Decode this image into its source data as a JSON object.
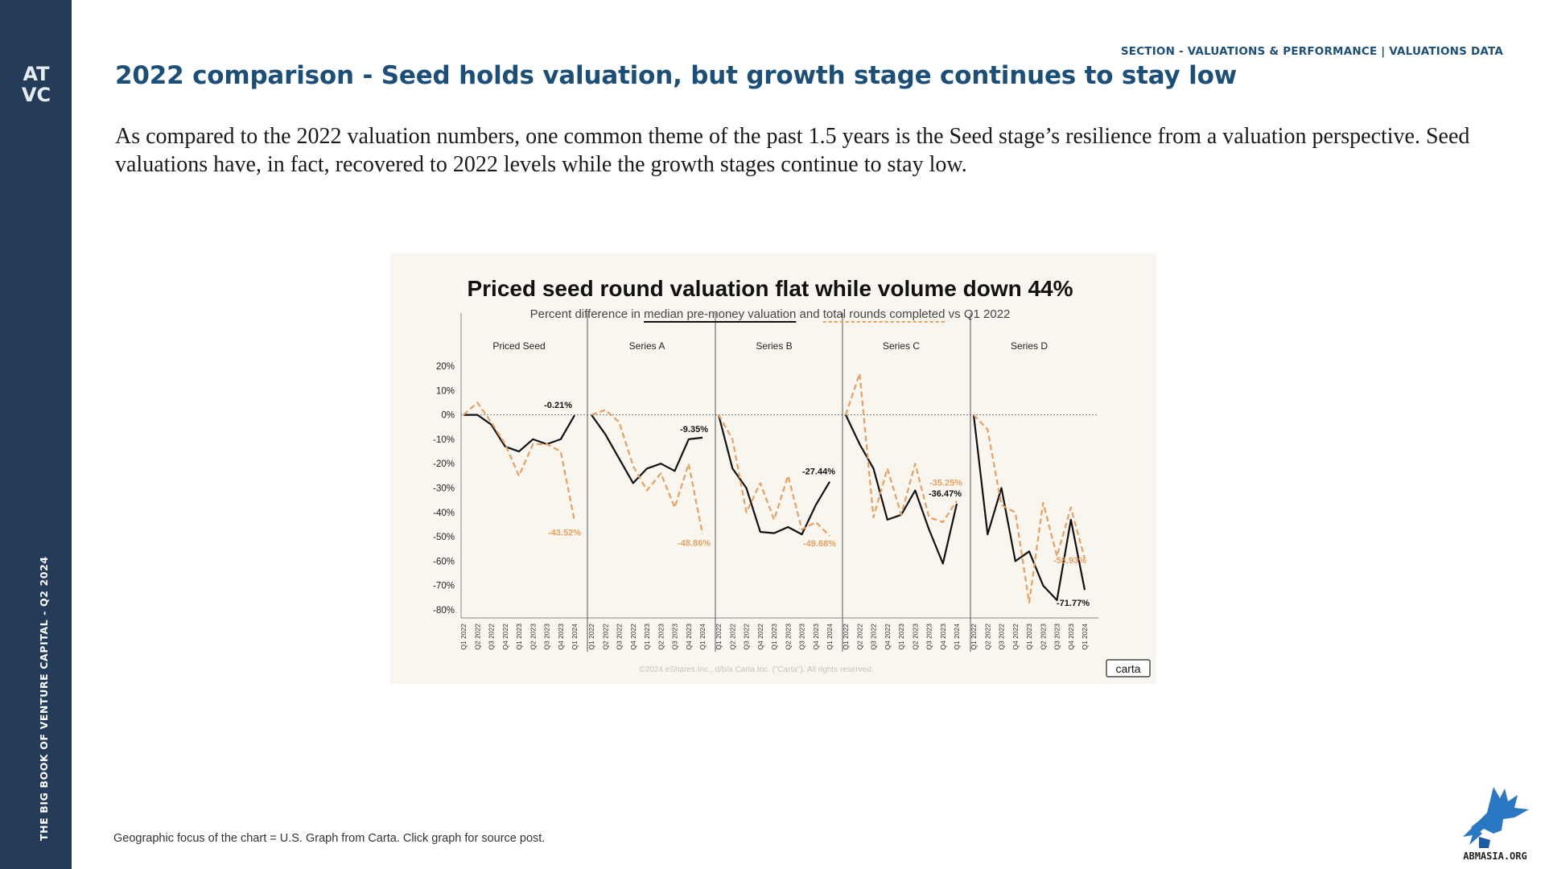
{
  "sidebar": {
    "logo_text": "ATVC",
    "vertical_text": "THE BIG BOOK OF VENTURE CAPITAL - Q2 2024"
  },
  "header": {
    "section_label": "SECTION - VALUATIONS & PERFORMANCE | VALUATIONS DATA",
    "title": "2022 comparison - Seed holds valuation, but growth stage continues to stay low"
  },
  "body_text": "As compared to the 2022 valuation numbers, one common theme of the past 1.5 years is the Seed stage’s resilience from a valuation perspective. Seed valuations have, in fact, recovered to 2022 levels while the growth stages continue to stay low.",
  "footnote": "Geographic focus of the chart = U.S. Graph from Carta. Click graph for source post.",
  "corner_logo_text": "ABMASIA.ORG",
  "colors": {
    "sidebar": "#243c5a",
    "heading": "#1b4f7a",
    "valuation_line": "#111111",
    "rounds_line": "#e8a060",
    "chart_bg": "#f9f6ef"
  },
  "chart_data": {
    "type": "line",
    "title": "Priced seed round valuation flat while volume down 44%",
    "subtitle_parts": [
      "Percent difference in ",
      "median pre-money valuation",
      " and ",
      "total rounds completed",
      " vs Q1 2022"
    ],
    "ylim": [
      -80,
      20
    ],
    "y_ticks": [
      20,
      10,
      0,
      -10,
      -20,
      -30,
      -40,
      -50,
      -60,
      -70,
      -80
    ],
    "y_tick_labels": [
      "20%",
      "10%",
      "0%",
      "-10%",
      "-20%",
      "-30%",
      "-40%",
      "-50%",
      "-60%",
      "-70%",
      "-80%"
    ],
    "x_tick_labels": [
      "Q1 2022",
      "Q2 2022",
      "Q3 2022",
      "Q4 2022",
      "Q1 2023",
      "Q2 2023",
      "Q3 2023",
      "Q4 2023",
      "Q1 2024"
    ],
    "series": [
      {
        "name": "median pre-money valuation",
        "style": "solid",
        "color": "#111111",
        "panels": {
          "Priced Seed": [
            0,
            0,
            -4,
            -13,
            -15,
            -10,
            -12,
            -10,
            -0.21
          ],
          "Series A": [
            0,
            -8,
            -18,
            -28,
            -22,
            -20,
            -23,
            -10,
            -9.35
          ],
          "Series B": [
            0,
            -22,
            -30,
            -48,
            -48.5,
            -46,
            -49,
            -37,
            -27.44
          ],
          "Series C": [
            0,
            -12,
            -22,
            -43,
            -41,
            -31,
            -47,
            -61,
            -36.47
          ],
          "Series D": [
            0,
            -49,
            -30,
            -60,
            -56,
            -70,
            -76,
            -43,
            -71.77
          ]
        }
      },
      {
        "name": "total rounds completed",
        "style": "dashed",
        "color": "#e8a060",
        "panels": {
          "Priced Seed": [
            0,
            5,
            -3,
            -12,
            -25,
            -12,
            -12,
            -15,
            -43.52
          ],
          "Series A": [
            0,
            2,
            -3,
            -21,
            -31,
            -24,
            -38,
            -20,
            -48.86
          ],
          "Series B": [
            0,
            -10,
            -40,
            -28,
            -43,
            -25,
            -47,
            -44,
            -49.68
          ],
          "Series C": [
            0,
            17,
            -42,
            -22,
            -41,
            -20,
            -42,
            -44,
            -35.25
          ],
          "Series D": [
            0,
            -6,
            -37,
            -40,
            -77,
            -36,
            -58,
            -38,
            -58.93
          ]
        }
      }
    ],
    "panel_titles": [
      "Priced Seed",
      "Series A",
      "Series B",
      "Series C",
      "Series D"
    ],
    "end_labels": {
      "valuation": [
        "-0.21%",
        "-9.35%",
        "-27.44%",
        "-36.47%",
        "-71.77%"
      ],
      "rounds": [
        "-43.52%",
        "-48.86%",
        "-49.68%",
        "-35.25%",
        "-58.93%"
      ]
    },
    "copyright": "©2024 eShares Inc., d/b/a Carta Inc. (\"Carta\"). All rights reserved.",
    "brand": "carta",
    "grid": false,
    "zero_line": "dotted"
  }
}
